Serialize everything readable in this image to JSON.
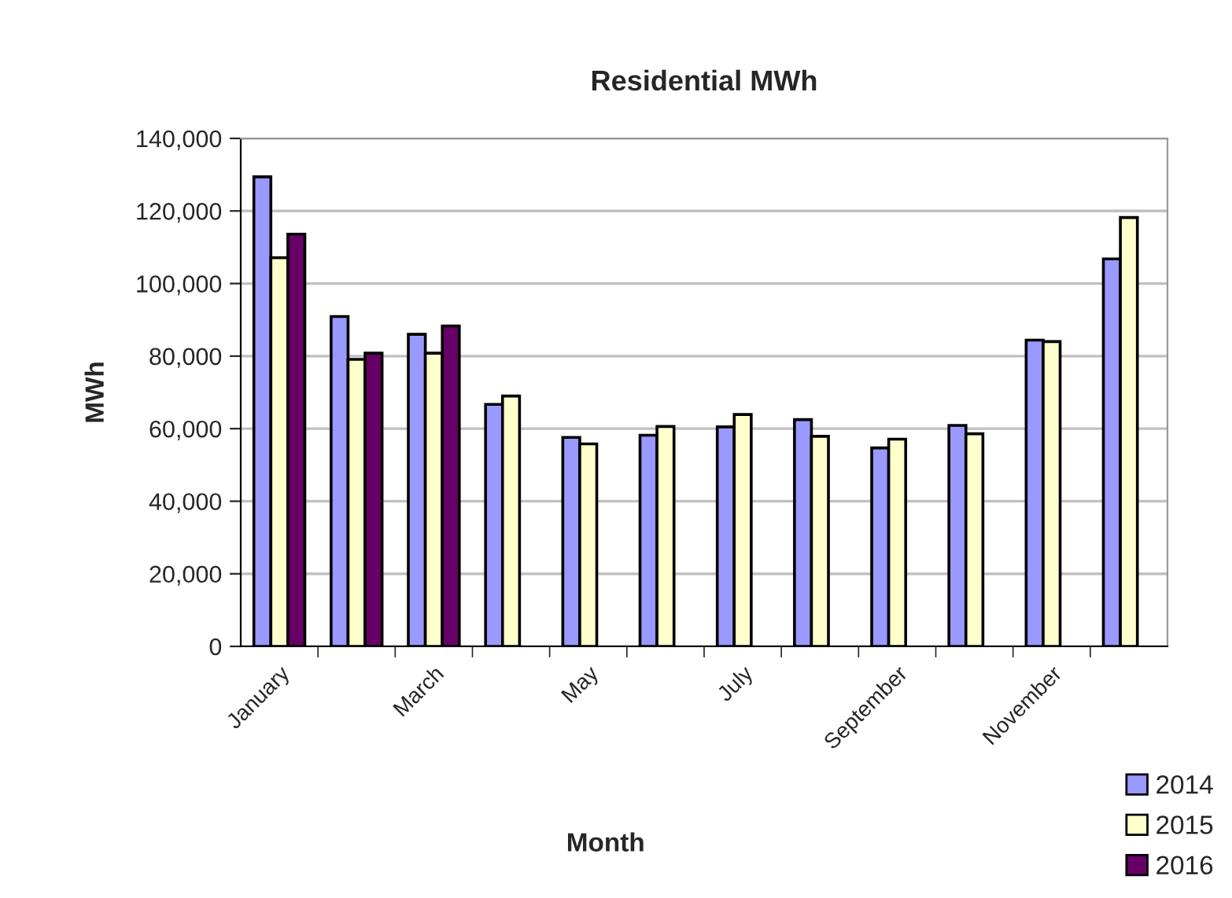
{
  "chart_data": {
    "type": "bar",
    "title": "Residential MWh",
    "xlabel": "Month",
    "ylabel": "MWh",
    "categories": [
      "January",
      null,
      "March",
      null,
      "May",
      null,
      "July",
      null,
      "September",
      null,
      "November",
      null
    ],
    "series": [
      {
        "name": "2014",
        "color": "#9999ff",
        "values": [
          129400,
          90900,
          86000,
          66700,
          57600,
          58200,
          60500,
          62500,
          54700,
          60900,
          84400,
          106800
        ]
      },
      {
        "name": "2015",
        "color": "#ffffcc",
        "values": [
          107100,
          79100,
          80800,
          69000,
          55800,
          60600,
          63900,
          57900,
          57100,
          58600,
          84000,
          118200
        ]
      },
      {
        "name": "2016",
        "color": "#660066",
        "values": [
          113600,
          80800,
          88300,
          null,
          null,
          null,
          null,
          null,
          null,
          null,
          null,
          null
        ]
      }
    ],
    "ylim": [
      0,
      140000
    ],
    "yticks": [
      0,
      {
        "value": 20000,
        "label": "20,000"
      },
      {
        "value": 40000,
        "label": "40,000"
      },
      {
        "value": 60000,
        "label": "60,000"
      },
      {
        "value": 80000,
        "label": "80,000"
      },
      {
        "value": 100000,
        "label": "100,000"
      },
      {
        "value": 120000,
        "label": "120,000"
      },
      {
        "value": 140000,
        "label": "140,000"
      }
    ],
    "grid": "y",
    "legend": "bottom right"
  }
}
